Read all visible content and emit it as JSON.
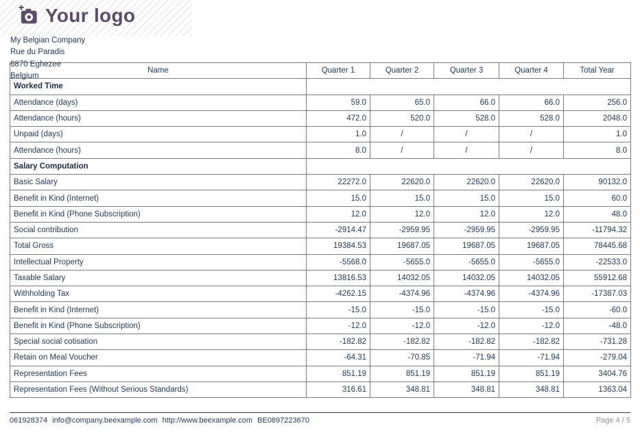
{
  "logo": {
    "text": "Your logo",
    "icon": "camera-add-icon",
    "color": "#5c4b69"
  },
  "company": {
    "name": "My Belgian Company",
    "street": "Rue du Paradis",
    "city": "6870 Eghezee",
    "country": "Belgium"
  },
  "table": {
    "columns": [
      "Name",
      "Quarter 1",
      "Quarter 2",
      "Quarter 3",
      "Quarter 4",
      "Total Year"
    ],
    "rows": [
      {
        "type": "section",
        "label": "Worked Time"
      },
      {
        "type": "data",
        "label": "Attendance (days)",
        "values": [
          "59.0",
          "65.0",
          "66.0",
          "66.0",
          "256.0"
        ]
      },
      {
        "type": "data",
        "label": "Attendance (hours)",
        "values": [
          "472.0",
          "520.0",
          "528.0",
          "528.0",
          "2048.0"
        ]
      },
      {
        "type": "data",
        "label": "Unpaid (days)",
        "values": [
          "1.0",
          "/",
          "/",
          "/",
          "1.0"
        ]
      },
      {
        "type": "data",
        "label": "Attendance (hours)",
        "values": [
          "8.0",
          "/",
          "/",
          "/",
          "8.0"
        ]
      },
      {
        "type": "section",
        "label": "Salary Computation"
      },
      {
        "type": "data",
        "label": "Basic Salary",
        "values": [
          "22272.0",
          "22620.0",
          "22620.0",
          "22620.0",
          "90132.0"
        ]
      },
      {
        "type": "data",
        "label": "Benefit in Kind (Internet)",
        "values": [
          "15.0",
          "15.0",
          "15.0",
          "15.0",
          "60.0"
        ]
      },
      {
        "type": "data",
        "label": "Benefit in Kind (Phone Subscription)",
        "values": [
          "12.0",
          "12.0",
          "12.0",
          "12.0",
          "48.0"
        ]
      },
      {
        "type": "data",
        "label": "Social contribution",
        "values": [
          "-2914.47",
          "-2959.95",
          "-2959.95",
          "-2959.95",
          "-11794.32"
        ]
      },
      {
        "type": "data",
        "label": "Total Gross",
        "values": [
          "19384.53",
          "19687.05",
          "19687.05",
          "19687.05",
          "78445.68"
        ]
      },
      {
        "type": "data",
        "label": "Intellectual Property",
        "values": [
          "-5568.0",
          "-5655.0",
          "-5655.0",
          "-5655.0",
          "-22533.0"
        ]
      },
      {
        "type": "data",
        "label": "Taxable Salary",
        "values": [
          "13816.53",
          "14032.05",
          "14032.05",
          "14032.05",
          "55912.68"
        ]
      },
      {
        "type": "data",
        "label": "Withholding Tax",
        "values": [
          "-4262.15",
          "-4374.96",
          "-4374.96",
          "-4374.96",
          "-17387.03"
        ]
      },
      {
        "type": "data",
        "label": "Benefit in Kind (Internet)",
        "values": [
          "-15.0",
          "-15.0",
          "-15.0",
          "-15.0",
          "-60.0"
        ]
      },
      {
        "type": "data",
        "label": "Benefit in Kind (Phone Subscription)",
        "values": [
          "-12.0",
          "-12.0",
          "-12.0",
          "-12.0",
          "-48.0"
        ]
      },
      {
        "type": "data",
        "label": "Special social cotisation",
        "values": [
          "-182.82",
          "-182.82",
          "-182.82",
          "-182.82",
          "-731.28"
        ]
      },
      {
        "type": "data",
        "label": "Retain on Meal Voucher",
        "values": [
          "-64.31",
          "-70.85",
          "-71.94",
          "-71.94",
          "-279.04"
        ]
      },
      {
        "type": "data",
        "label": "Representation Fees",
        "values": [
          "851.19",
          "851.19",
          "851.19",
          "851.19",
          "3404.76"
        ]
      },
      {
        "type": "data",
        "label": "Representation Fees (Without Serious Standards)",
        "values": [
          "316.61",
          "348.81",
          "348.81",
          "348.81",
          "1363.04"
        ]
      }
    ]
  },
  "footer": {
    "phone": "061928374",
    "email": "info@company.beexample.com",
    "website": "http://www.beexample.com",
    "vat": "BE0897223670",
    "page": "Page 4 / 5"
  }
}
